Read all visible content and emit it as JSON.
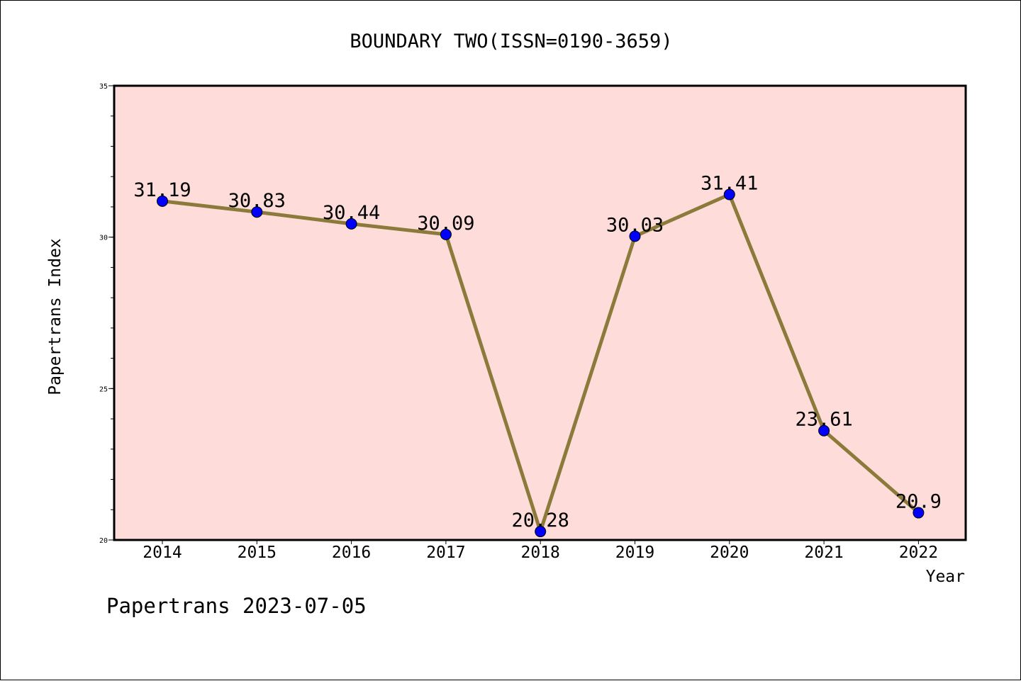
{
  "chart_data": {
    "type": "line",
    "title": "BOUNDARY TWO(ISSN=0190-3659)",
    "xlabel": "Year",
    "ylabel": "Papertrans Index",
    "footer": "Papertrans 2023-07-05",
    "categories": [
      "2014",
      "2015",
      "2016",
      "2017",
      "2018",
      "2019",
      "2020",
      "2021",
      "2022"
    ],
    "series": [
      {
        "values": [
          31.19,
          30.83,
          30.44,
          30.09,
          20.28,
          30.03,
          31.41,
          23.61,
          20.9
        ],
        "labels": [
          "31.19",
          "30.83",
          "30.44",
          "30.09",
          "20.28",
          "30.03",
          "31.41",
          "23.61",
          "20.9"
        ]
      }
    ],
    "ylim": [
      20,
      35
    ],
    "yticks": [
      "20",
      "25",
      "30",
      "35"
    ],
    "grid": false,
    "colors": {
      "plot_background": "#fddcda",
      "line": "#8b7a3a",
      "marker": "#0000ff",
      "marker_edge": "#000000"
    }
  }
}
